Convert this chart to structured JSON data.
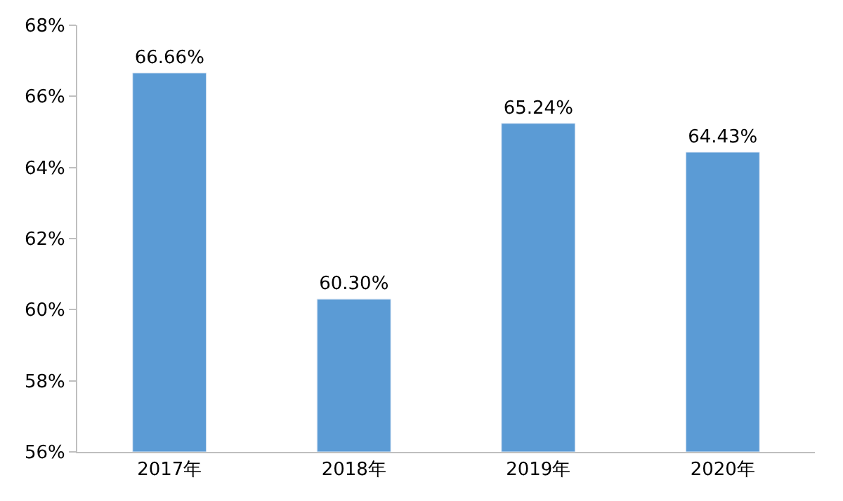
{
  "chart_data": {
    "type": "bar",
    "categories": [
      "2017年",
      "2018年",
      "2019年",
      "2020年"
    ],
    "values": [
      66.66,
      60.3,
      65.24,
      64.43
    ],
    "value_labels": [
      "66.66%",
      "60.30%",
      "65.24%",
      "64.43%"
    ],
    "color": "#5b9bd5",
    "ylim": [
      56,
      68
    ],
    "yticks": [
      {
        "value": 56,
        "label": "56%"
      },
      {
        "value": 58,
        "label": "58%"
      },
      {
        "value": 60,
        "label": "60%"
      },
      {
        "value": 62,
        "label": "62%"
      },
      {
        "value": 64,
        "label": "64%"
      },
      {
        "value": 66,
        "label": "66%"
      },
      {
        "value": 68,
        "label": "68%"
      }
    ],
    "grid": false,
    "legend": false
  }
}
